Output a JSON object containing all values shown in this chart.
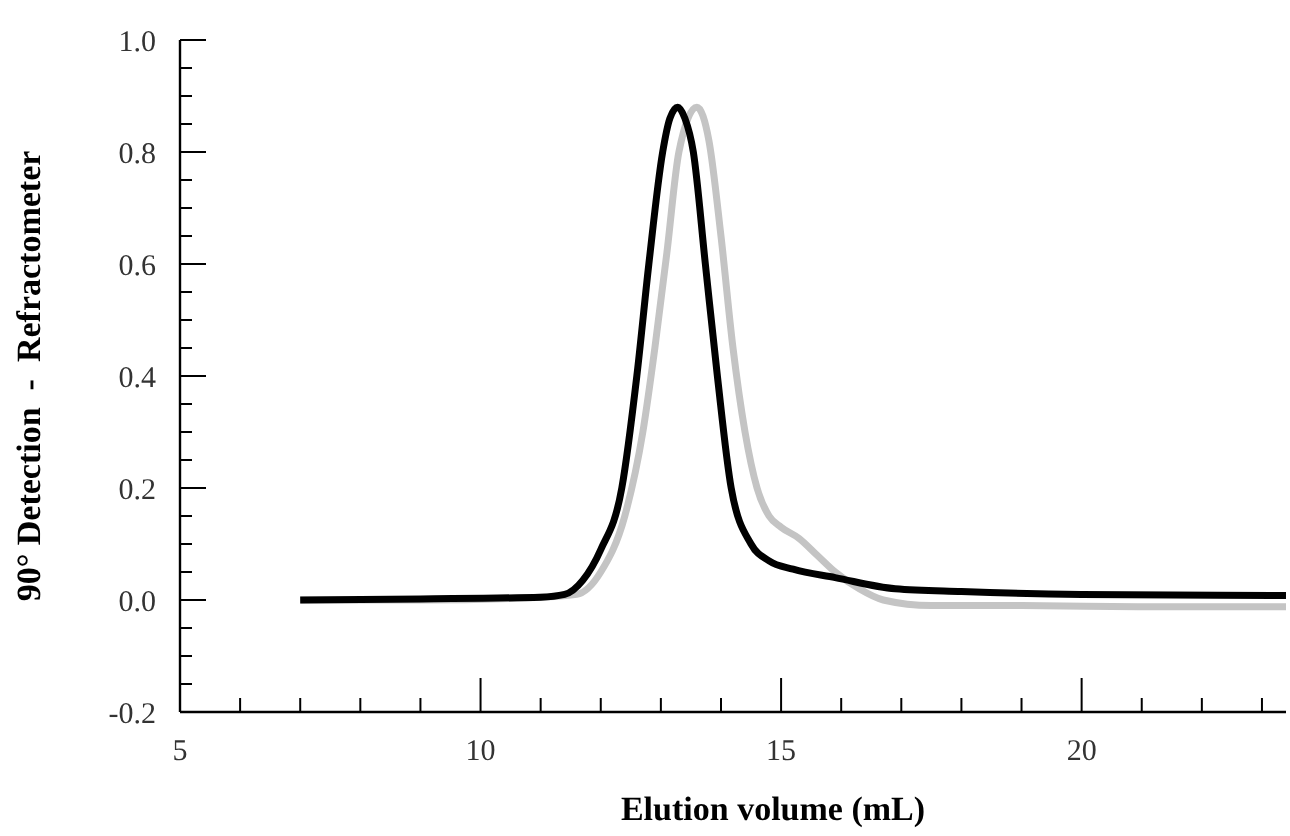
{
  "chart_data": {
    "type": "line",
    "xlabel": "Elution volume (mL)",
    "ylabel": "90° Detection  -  Refractometer",
    "xlim": [
      5,
      23.4
    ],
    "ylim": [
      -0.2,
      1.0
    ],
    "xticks": [
      5,
      {
        "value": 6,
        "label": null
      },
      {
        "value": 7,
        "label": null
      },
      {
        "value": 8,
        "label": null
      },
      {
        "value": 9,
        "label": null
      },
      10,
      {
        "value": 11,
        "label": null
      },
      {
        "value": 12,
        "label": null
      },
      {
        "value": 13,
        "label": null
      },
      {
        "value": 14,
        "label": null
      },
      15,
      {
        "value": 16,
        "label": null
      },
      {
        "value": 17,
        "label": null
      },
      {
        "value": 18,
        "label": null
      },
      {
        "value": 19,
        "label": null
      },
      20,
      {
        "value": 21,
        "label": null
      },
      {
        "value": 22,
        "label": null
      },
      {
        "value": 23,
        "label": null
      }
    ],
    "yticks": [
      {
        "value": -0.2,
        "label": "-0.2"
      },
      {
        "value": -0.15,
        "label": null
      },
      {
        "value": -0.1,
        "label": null
      },
      {
        "value": -0.05,
        "label": null
      },
      {
        "value": 0,
        "label": "0.0"
      },
      {
        "value": 0.05,
        "label": null
      },
      {
        "value": 0.1,
        "label": null
      },
      {
        "value": 0.15,
        "label": null
      },
      0.2,
      {
        "value": 0.25,
        "label": null
      },
      {
        "value": 0.3,
        "label": null
      },
      {
        "value": 0.35,
        "label": null
      },
      0.4,
      {
        "value": 0.45,
        "label": null
      },
      {
        "value": 0.5,
        "label": null
      },
      {
        "value": 0.55,
        "label": null
      },
      0.6,
      {
        "value": 0.65,
        "label": null
      },
      {
        "value": 0.7,
        "label": null
      },
      {
        "value": 0.75,
        "label": null
      },
      0.8,
      {
        "value": 0.85,
        "label": null
      },
      {
        "value": 0.9,
        "label": null
      },
      {
        "value": 0.95,
        "label": null
      },
      {
        "value": 1.0,
        "label": "1.0"
      }
    ],
    "grid": false,
    "marker": "none",
    "line_style": "solid",
    "series": [
      {
        "color": "#c4c4c4",
        "x": [
          7,
          9,
          11,
          11.6,
          12.0,
          12.4,
          12.7,
          12.9,
          13.1,
          13.3,
          13.6,
          13.8,
          14.0,
          14.2,
          14.4,
          14.6,
          14.8,
          15.0,
          15.3,
          15.6,
          15.9,
          16.3,
          16.7,
          17.5,
          19,
          21,
          23.4
        ],
        "values": [
          0,
          0,
          0.005,
          0.01,
          0.05,
          0.15,
          0.3,
          0.45,
          0.62,
          0.8,
          0.88,
          0.82,
          0.65,
          0.45,
          0.3,
          0.2,
          0.15,
          0.13,
          0.11,
          0.08,
          0.05,
          0.02,
          0.0,
          -0.01,
          -0.01,
          -0.012,
          -0.012
        ]
      },
      {
        "color": "#000000",
        "x": [
          7,
          9,
          11,
          11.4,
          11.7,
          12.0,
          12.35,
          12.6,
          12.8,
          13.03,
          13.15,
          13.28,
          13.4,
          13.54,
          13.74,
          13.94,
          14.17,
          14.5,
          14.8,
          15.2,
          15.9,
          16.9,
          18,
          20,
          23.4
        ],
        "values": [
          0,
          0.002,
          0.005,
          0.01,
          0.035,
          0.09,
          0.2,
          0.4,
          0.6,
          0.8,
          0.86,
          0.88,
          0.86,
          0.8,
          0.6,
          0.4,
          0.2,
          0.1,
          0.07,
          0.055,
          0.04,
          0.02,
          0.015,
          0.01,
          0.008
        ]
      }
    ]
  }
}
